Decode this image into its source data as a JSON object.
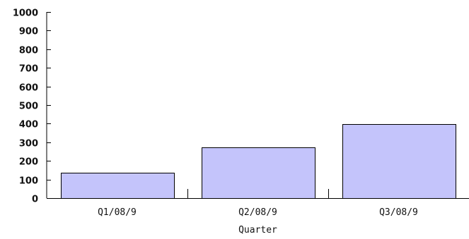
{
  "chart_data": {
    "type": "bar",
    "title": "",
    "xlabel": "Quarter",
    "ylabel": "",
    "categories": [
      "Q1/08/9",
      "Q2/08/9",
      "Q3/08/9"
    ],
    "values": [
      135,
      272,
      397
    ],
    "ylim": [
      0,
      1000
    ],
    "yticks": [
      0,
      100,
      200,
      300,
      400,
      500,
      600,
      700,
      800,
      900,
      1000
    ],
    "grid": false,
    "legend": "none",
    "bar_color": "#c4c4fb",
    "bar_edge_color": "#000000"
  }
}
